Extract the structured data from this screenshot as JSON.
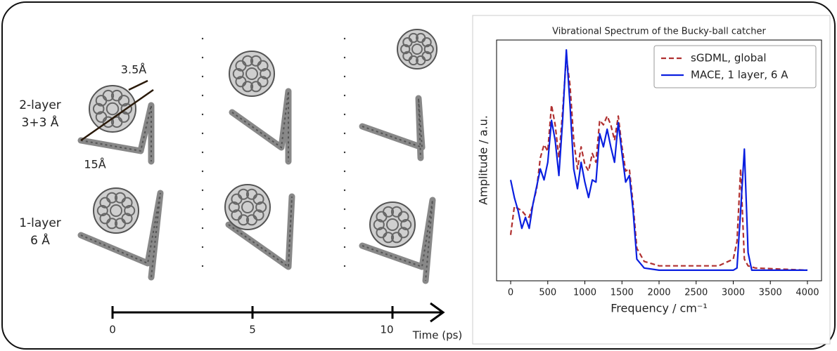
{
  "chart_data": {
    "type": "line",
    "title": "Vibrational Spectrum of the Bucky-ball catcher",
    "xlabel": "Frequency / cm⁻¹",
    "ylabel": "Amplitude / a.u.",
    "x": [
      0,
      50,
      100,
      150,
      200,
      250,
      300,
      350,
      400,
      450,
      500,
      550,
      600,
      650,
      700,
      750,
      800,
      850,
      900,
      950,
      1000,
      1050,
      1100,
      1150,
      1200,
      1250,
      1300,
      1350,
      1400,
      1450,
      1500,
      1550,
      1600,
      1650,
      1700,
      1800,
      2000,
      2500,
      2800,
      3000,
      3050,
      3100,
      3150,
      3200,
      3250,
      3300,
      4000
    ],
    "series": [
      {
        "name": "sGDML, global",
        "color": "#b03030",
        "dash": true,
        "values": [
          0.16,
          0.29,
          0.28,
          0.27,
          0.25,
          0.24,
          0.3,
          0.37,
          0.51,
          0.57,
          0.54,
          0.75,
          0.66,
          0.51,
          0.72,
          0.97,
          0.84,
          0.59,
          0.46,
          0.56,
          0.48,
          0.45,
          0.53,
          0.49,
          0.68,
          0.66,
          0.7,
          0.66,
          0.59,
          0.7,
          0.56,
          0.45,
          0.46,
          0.3,
          0.1,
          0.04,
          0.02,
          0.02,
          0.02,
          0.05,
          0.13,
          0.46,
          0.05,
          0.02,
          0.015,
          0.01,
          0
        ]
      },
      {
        "name": "MACE, 1 layer, 6 A",
        "color": "#0a1fe0",
        "dash": false,
        "values": [
          0.41,
          0.33,
          0.27,
          0.19,
          0.24,
          0.19,
          0.3,
          0.38,
          0.46,
          0.41,
          0.49,
          0.68,
          0.59,
          0.43,
          0.68,
          1.0,
          0.75,
          0.46,
          0.37,
          0.49,
          0.4,
          0.33,
          0.41,
          0.4,
          0.62,
          0.56,
          0.64,
          0.56,
          0.49,
          0.67,
          0.53,
          0.4,
          0.43,
          0.27,
          0.05,
          0.01,
          0,
          0,
          0,
          0,
          0.01,
          0.27,
          0.55,
          0.08,
          0,
          0,
          0
        ]
      }
    ],
    "xlim": [
      -190,
      4190
    ],
    "ylim": [
      -0.048,
      1.045
    ],
    "xticks": [
      0,
      500,
      1000,
      1500,
      2000,
      2500,
      3000,
      3500,
      4000
    ],
    "legend": "upper right"
  },
  "figure": {
    "row_labels": [
      [
        "2-layer",
        "3+3 Å"
      ],
      [
        "1-layer",
        "6 Å"
      ]
    ],
    "annotations": {
      "gap": "3.5Å",
      "span": "15Å"
    },
    "timeline": {
      "ticks": [
        0,
        5,
        10
      ],
      "label": "Time (ps)"
    }
  }
}
